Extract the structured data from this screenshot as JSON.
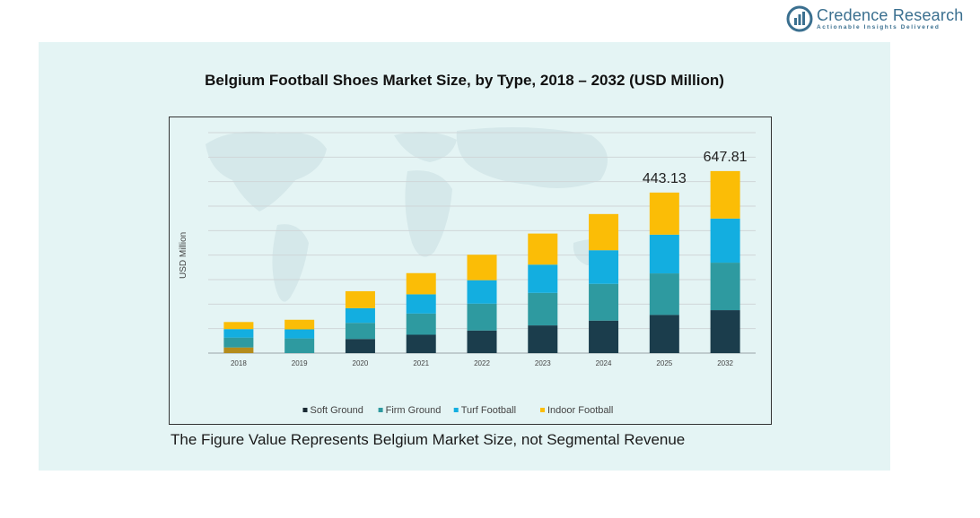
{
  "brand": {
    "name": "Credence Research",
    "tagline": "Actionable Insights Delivered",
    "logo_icon": "credence-logo-icon",
    "color": "#3a6f8f"
  },
  "footnote": "The Figure Value Represents Belgium Market Size, not Segmental Revenue",
  "chart_data": {
    "type": "bar",
    "stacked": true,
    "title": "Belgium Football Shoes Market Size, by Type, 2018 – 2032 (USD Million)",
    "xlabel": "",
    "ylabel": "USD Million",
    "categories": [
      "2018",
      "2019",
      "2020",
      "2021",
      "2022",
      "2023",
      "2024",
      "2025",
      "2032"
    ],
    "ylim": [
      0,
      780
    ],
    "grid": true,
    "legend_position": "bottom",
    "series": [
      {
        "name": "Soft Ground",
        "color": "#1b3d4c",
        "values": [
          20,
          0,
          50,
          65,
          80,
          98,
          115,
          135,
          152
        ]
      },
      {
        "name": "Firm Ground",
        "color": "#2e9aa0",
        "values": [
          35,
          52,
          57,
          75,
          95,
          115,
          130,
          147,
          168
        ]
      },
      {
        "name": "Turf Football",
        "color": "#13aee0",
        "values": [
          30,
          32,
          52,
          68,
          83,
          100,
          119,
          137,
          156
        ]
      },
      {
        "name": "Indoor Football",
        "color": "#fbbd06",
        "values": [
          25,
          34,
          60,
          75,
          90,
          110,
          128,
          149,
          168
        ]
      }
    ],
    "data_labels": [
      {
        "category": "2025",
        "text": "443.13"
      },
      {
        "category": "2032",
        "text": "647.81"
      }
    ],
    "first_bar_soft_color": "#b48c1c"
  }
}
